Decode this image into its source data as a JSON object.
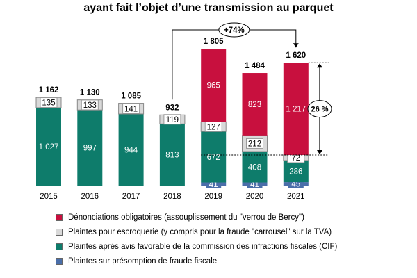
{
  "title": "ayant fait l’objet d’une transmission au parquet",
  "colors": {
    "denonciations": "#C8103E",
    "escroquerie": "#D9D9D9",
    "cif": "#0E7C6B",
    "presomption": "#4A6EA9"
  },
  "chart_data": {
    "type": "bar",
    "stacked": true,
    "categories": [
      "2015",
      "2016",
      "2017",
      "2018",
      "2019",
      "2020",
      "2021"
    ],
    "series": [
      {
        "name": "Plaintes sur présomption de fraude fiscale",
        "key": "presomption",
        "values": [
          0,
          0,
          0,
          0,
          41,
          41,
          45
        ],
        "labels": [
          "",
          "",
          "",
          "",
          "41",
          "41",
          "45"
        ]
      },
      {
        "name": "Plaintes après avis favorable de la commission des infractions fiscales (CIF)",
        "key": "cif",
        "values": [
          1027,
          997,
          944,
          813,
          672,
          408,
          286
        ],
        "labels": [
          "1 027",
          "997",
          "944",
          "813",
          "672",
          "408",
          "286"
        ]
      },
      {
        "name": "Plaintes pour escroquerie (y compris pour la fraude \"carrousel\" sur la TVA)",
        "key": "escroquerie",
        "values": [
          135,
          133,
          141,
          119,
          127,
          212,
          72
        ],
        "labels": [
          "135",
          "133",
          "141",
          "119",
          "127",
          "212",
          "72"
        ]
      },
      {
        "name": "Dénonciations obligatoires (assouplissement du \"verrou de Bercy\")",
        "key": "denonciations",
        "values": [
          0,
          0,
          0,
          0,
          965,
          823,
          1217
        ],
        "labels": [
          "",
          "",
          "",
          "",
          "965",
          "823",
          "1 217"
        ]
      }
    ],
    "totals": [
      1162,
      1130,
      1085,
      932,
      1805,
      1484,
      1620
    ],
    "total_labels": [
      "1 162",
      "1 130",
      "1 085",
      "932",
      "1 805",
      "1 484",
      "1 620"
    ],
    "annotations": {
      "growth_2018_2021": "+74%",
      "share_2021": "26 %"
    },
    "legend_order": [
      "denonciations",
      "escroquerie",
      "cif",
      "presomption"
    ],
    "legend_labels": {
      "denonciations": "Dénonciations obligatoires (assouplissement du \"verrou de Bercy\")",
      "escroquerie": "Plaintes pour escroquerie (y compris pour la fraude \"carrousel\" sur la TVA)",
      "cif": "Plaintes après avis favorable de la commission des infractions fiscales (CIF)",
      "presomption": "Plaintes sur présomption de fraude fiscale"
    },
    "legend_position": "bottom",
    "grid": false,
    "xlabel": "",
    "ylabel": "",
    "ylim": [
      0,
      1805
    ]
  }
}
